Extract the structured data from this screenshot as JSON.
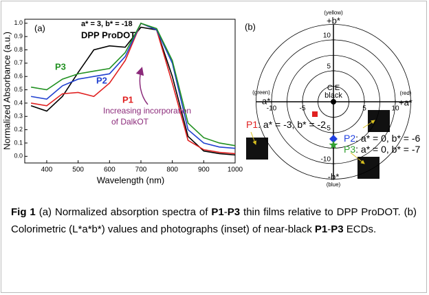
{
  "chart_data": [
    {
      "type": "line",
      "panel_label": "(a)",
      "x_label": "Wavelength (nm)",
      "y_label": "Normalized Absorbance (a.u.)",
      "xlim": [
        330,
        1000
      ],
      "ylim": [
        -0.05,
        1.03
      ],
      "xticks": [
        400,
        500,
        600,
        700,
        800,
        900,
        1000
      ],
      "yticks": [
        {
          "value": 0,
          "label": "0.0"
        },
        {
          "value": 0.1,
          "label": "0.1"
        },
        {
          "value": 0.2,
          "label": "0.2"
        },
        {
          "value": 0.3,
          "label": "0.3"
        },
        {
          "value": 0.4,
          "label": "0.4"
        },
        {
          "value": 0.5,
          "label": "0.5"
        },
        {
          "value": 0.6,
          "label": "0.6"
        },
        {
          "value": 0.7,
          "label": "0.7"
        },
        {
          "value": 0.8,
          "label": "0.8"
        },
        {
          "value": 0.9,
          "label": "0.9"
        },
        {
          "value": 1,
          "label": "1.0"
        }
      ],
      "x": [
        350,
        400,
        450,
        500,
        550,
        600,
        650,
        700,
        750,
        800,
        850,
        900,
        950,
        1000
      ],
      "series": [
        {
          "name": "DPP ProDOT",
          "color": "#000000",
          "values": [
            0.38,
            0.34,
            0.45,
            0.63,
            0.8,
            0.83,
            0.82,
            0.97,
            0.95,
            0.6,
            0.15,
            0.04,
            0.02,
            0.01
          ]
        },
        {
          "name": "P1",
          "color": "#e02020",
          "values": [
            0.4,
            0.38,
            0.47,
            0.48,
            0.45,
            0.55,
            0.72,
            1.0,
            0.95,
            0.55,
            0.12,
            0.05,
            0.03,
            0.02
          ]
        },
        {
          "name": "P2",
          "color": "#2040d0",
          "values": [
            0.45,
            0.43,
            0.53,
            0.58,
            0.6,
            0.62,
            0.75,
            1.0,
            0.95,
            0.7,
            0.2,
            0.1,
            0.07,
            0.06
          ]
        },
        {
          "name": "P3",
          "color": "#209020",
          "values": [
            0.52,
            0.5,
            0.58,
            0.62,
            0.64,
            0.66,
            0.78,
            1.0,
            0.96,
            0.72,
            0.25,
            0.14,
            0.1,
            0.08
          ]
        }
      ],
      "annotations": [
        {
          "text": "a* = 3, b* = -18",
          "color": "#000000"
        },
        {
          "text": "Increasing incorporation",
          "color": "#8b2a7a"
        },
        {
          "text": "of DalkOT",
          "color": "#8b2a7a"
        }
      ]
    },
    {
      "type": "scatter",
      "panel_label": "(b)",
      "xlim": [
        -12.5,
        12.5
      ],
      "ylim": [
        -12.5,
        12.5
      ],
      "xticks": [
        -10,
        -5,
        5,
        10
      ],
      "yticks": [
        10,
        5,
        -5,
        -10
      ],
      "axis_labels": [
        {
          "text": "+b*",
          "note": "(yellow)"
        },
        {
          "text": "-b*",
          "note": "(blue)"
        },
        {
          "text": "-a*",
          "note": "(green)"
        },
        {
          "text": "+a*",
          "note": "(red)"
        }
      ],
      "annotations": [
        {
          "text": "CIE"
        },
        {
          "text": "black"
        }
      ],
      "series": [
        {
          "color": "#000000",
          "marker": "circle",
          "x": [
            0
          ],
          "y": [
            0
          ]
        },
        {
          "name": "P1",
          "color": "#e02020",
          "marker": "square",
          "x": [
            -3
          ],
          "y": [
            -2
          ],
          "label": ": a* = -3, b* = -2"
        },
        {
          "name": "P2",
          "color": "#2040e0",
          "marker": "diamond",
          "x": [
            0
          ],
          "y": [
            -6
          ],
          "label": ": a* = 0, b* = -6"
        },
        {
          "name": "P3",
          "color": "#30a030",
          "marker": "star",
          "x": [
            0
          ],
          "y": [
            -7
          ],
          "label": ": a* = 0, b* = -7"
        }
      ]
    }
  ],
  "caption": [
    {
      "text": "Fig 1",
      "bold": true
    },
    {
      "text": " (a) Normalized absorption spectra of "
    },
    {
      "text": "P1",
      "bold": true
    },
    {
      "text": "-"
    },
    {
      "text": "P3",
      "bold": true
    },
    {
      "text": " thin films relative to DPP ProDOT. (b) Colorimetric (L*a*b*) values and photographs (inset) of near-black "
    },
    {
      "text": "P1",
      "bold": true
    },
    {
      "text": "-"
    },
    {
      "text": "P3",
      "bold": true
    },
    {
      "text": " ECDs."
    }
  ]
}
